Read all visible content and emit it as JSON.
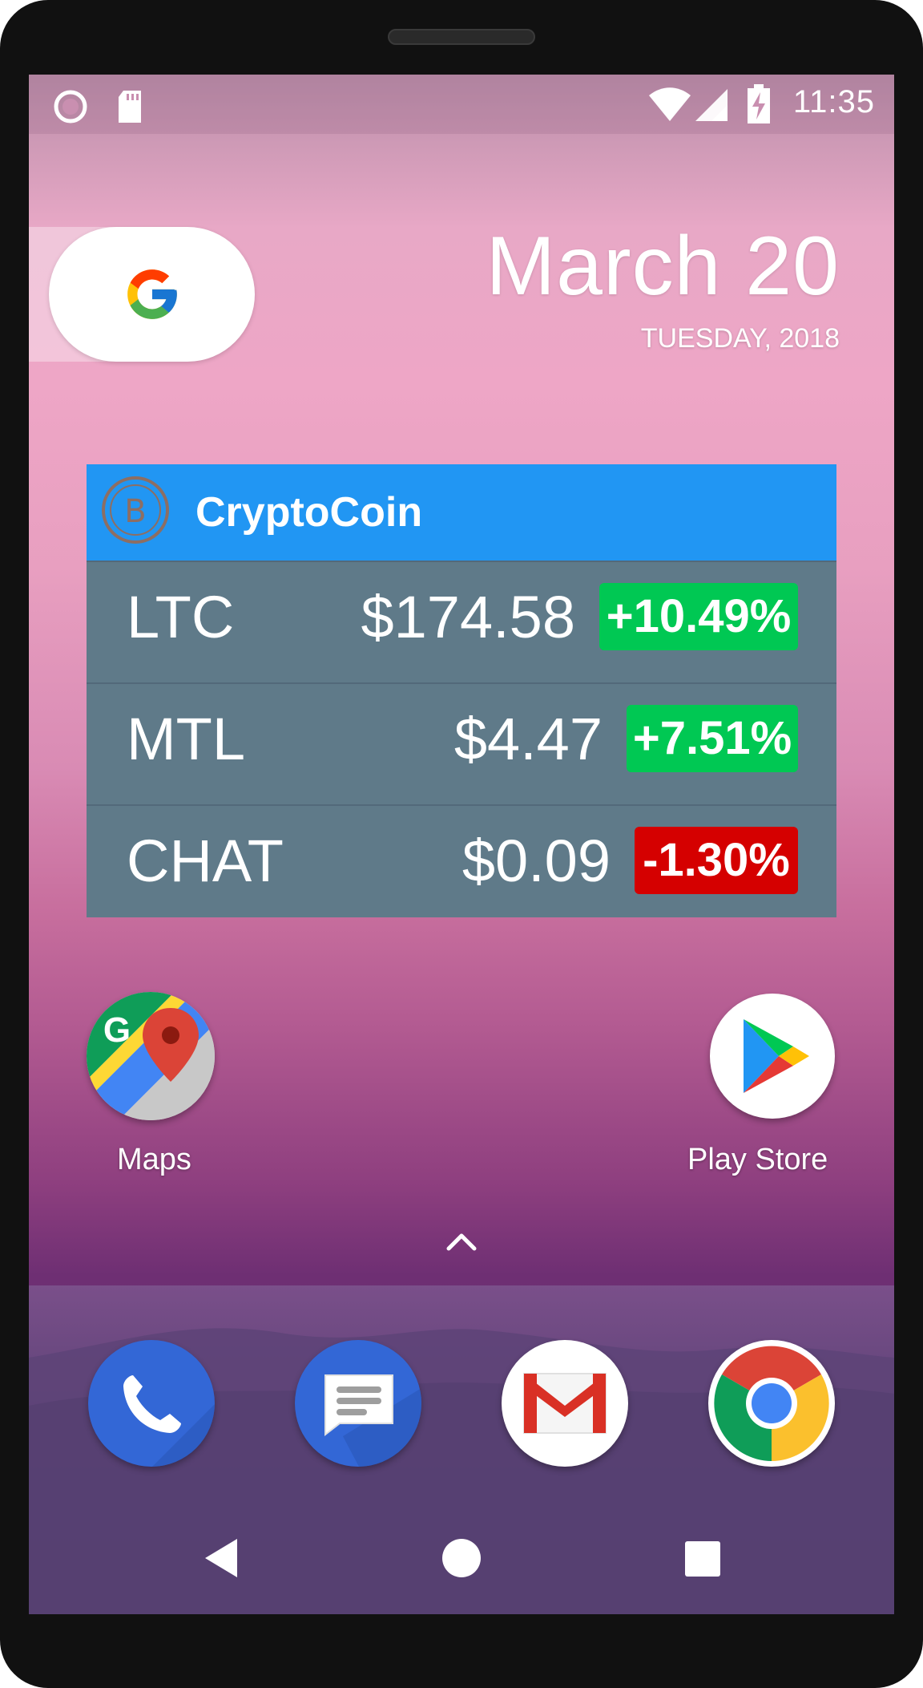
{
  "status_bar": {
    "time": "11:35",
    "icons": [
      "circle-record-icon",
      "sd-card-icon",
      "wifi-icon",
      "cell-signal-icon",
      "battery-charging-icon"
    ]
  },
  "search_widget": {
    "icon": "google-g-icon"
  },
  "date_widget": {
    "date": "March 20",
    "day_year": "TUESDAY, 2018"
  },
  "crypto_widget": {
    "title": "CryptoCoin",
    "icon": "bitcoin-icon",
    "rows": [
      {
        "symbol": "LTC",
        "price": "$174.58",
        "change": "+10.49%",
        "direction": "up"
      },
      {
        "symbol": "MTL",
        "price": "$4.47",
        "change": "+7.51%",
        "direction": "up"
      },
      {
        "symbol": "CHAT",
        "price": "$0.09",
        "change": "-1.30%",
        "direction": "down"
      }
    ],
    "colors": {
      "header": "#2196f3",
      "row": "#5f7a89",
      "up": "#00c853",
      "down": "#d50000"
    }
  },
  "apps": [
    {
      "label": "Maps",
      "icon": "maps-icon"
    },
    {
      "label": "Play Store",
      "icon": "play-store-icon"
    }
  ],
  "dock": [
    "phone-icon",
    "messages-icon",
    "gmail-icon",
    "chrome-icon"
  ],
  "nav": [
    "back-icon",
    "home-icon",
    "recents-icon"
  ]
}
